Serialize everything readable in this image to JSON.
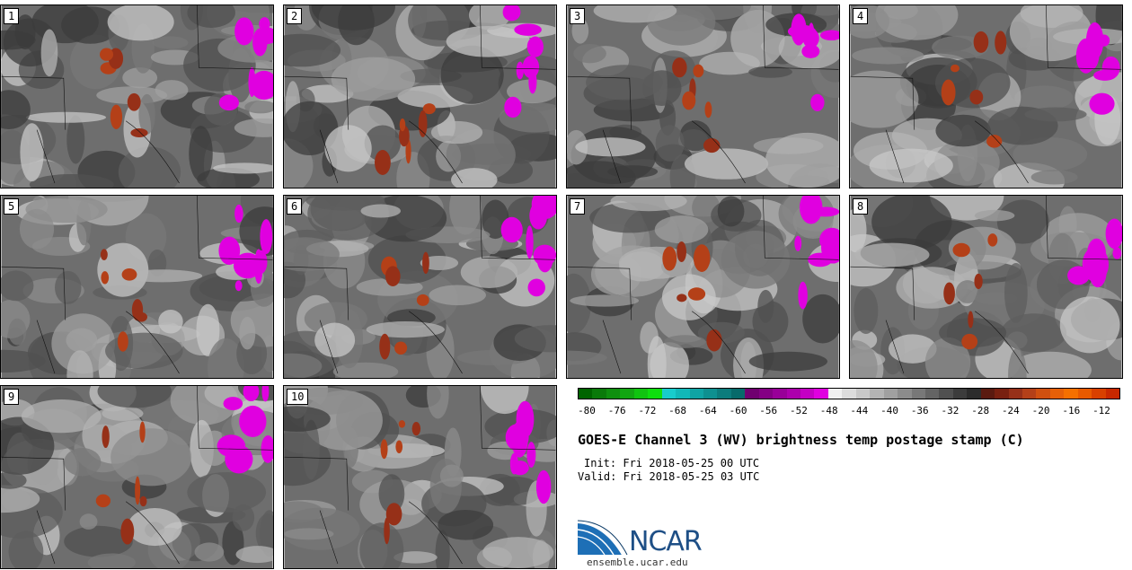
{
  "panels": [
    {
      "label": "1"
    },
    {
      "label": "2"
    },
    {
      "label": "3"
    },
    {
      "label": "4"
    },
    {
      "label": "5"
    },
    {
      "label": "6"
    },
    {
      "label": "7"
    },
    {
      "label": "8"
    },
    {
      "label": "9"
    },
    {
      "label": "10"
    }
  ],
  "colorbar": {
    "ticks": [
      "-80",
      "-76",
      "-72",
      "-68",
      "-64",
      "-60",
      "-56",
      "-52",
      "-48",
      "-44",
      "-40",
      "-36",
      "-32",
      "-28",
      "-24",
      "-20",
      "-16",
      "-12"
    ],
    "colors": [
      "#006400",
      "#0a7a0a",
      "#0f8f0f",
      "#12a612",
      "#10c410",
      "#0ede0e",
      "#18cccc",
      "#12b8b8",
      "#10a4a4",
      "#0e9090",
      "#0c7c7c",
      "#076a6a",
      "#700070",
      "#840084",
      "#980098",
      "#ac00ac",
      "#c400c4",
      "#e000e0",
      "#f0f0f0",
      "#dcdcdc",
      "#c8c8c8",
      "#b4b4b4",
      "#a0a0a0",
      "#8c8c8c",
      "#787878",
      "#646464",
      "#505050",
      "#3c3c3c",
      "#2c2c2c",
      "#5a1a10",
      "#782010",
      "#963018",
      "#b44018",
      "#d05010",
      "#e66008",
      "#f57000",
      "#e85a00",
      "#d84000",
      "#c82800"
    ]
  },
  "title": "GOES-E Channel 3 (WV) brightness temp postage stamp (C)",
  "init": "Init: Fri 2018-05-25 00 UTC",
  "valid": "Valid: Fri 2018-05-25 03 UTC",
  "logo": {
    "text": "NCAR",
    "url": "ensemble.ucar.edu"
  }
}
